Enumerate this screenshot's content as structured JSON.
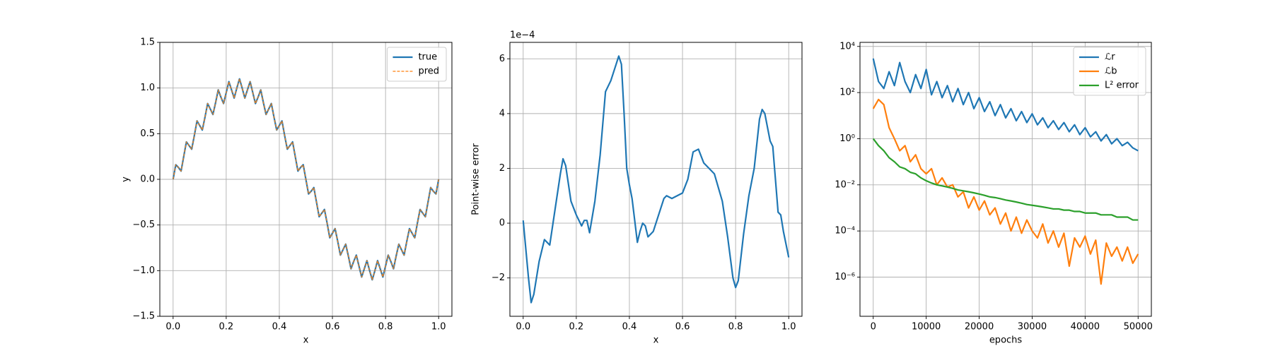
{
  "chart_data": [
    {
      "type": "line",
      "xlabel": "x",
      "ylabel": "y",
      "grid": true,
      "legend": "upper right",
      "xlim": [
        -0.05,
        1.05
      ],
      "ylim": [
        -1.5,
        1.5
      ],
      "xticks": [
        {
          "value": 0,
          "label": "0.0"
        },
        0.2,
        0.4,
        0.6,
        0.8,
        {
          "value": 1,
          "label": "1.0"
        }
      ],
      "yticks": [
        {
          "value": -1.5,
          "label": "−1.5"
        },
        {
          "value": -1,
          "label": "−1.0"
        },
        {
          "value": -0.5,
          "label": "−0.5"
        },
        {
          "value": 0,
          "label": "0.0"
        },
        0.5,
        {
          "value": 1,
          "label": "1.0"
        },
        1.5
      ],
      "x": [
        0,
        0.01,
        0.02,
        0.03,
        0.04,
        0.05,
        0.06,
        0.07,
        0.08,
        0.09,
        0.1,
        0.11,
        0.12,
        0.13,
        0.14,
        0.15,
        0.16,
        0.17,
        0.18,
        0.19,
        0.2,
        0.21,
        0.22,
        0.23,
        0.24,
        0.25,
        0.26,
        0.27,
        0.28,
        0.29,
        0.3,
        0.31,
        0.32,
        0.33,
        0.34,
        0.35,
        0.36,
        0.37,
        0.38,
        0.39,
        0.4,
        0.41,
        0.42,
        0.43,
        0.44,
        0.45,
        0.46,
        0.47,
        0.48,
        0.49,
        0.5,
        0.51,
        0.52,
        0.53,
        0.54,
        0.55,
        0.56,
        0.57,
        0.58,
        0.59,
        0.6,
        0.61,
        0.62,
        0.63,
        0.64,
        0.65,
        0.66,
        0.67,
        0.68,
        0.69,
        0.7,
        0.71,
        0.72,
        0.73,
        0.74,
        0.75,
        0.76,
        0.77,
        0.78,
        0.79,
        0.8,
        0.81,
        0.82,
        0.83,
        0.84,
        0.85,
        0.86,
        0.87,
        0.88,
        0.89,
        0.9,
        0.91,
        0.92,
        0.93,
        0.94,
        0.95,
        0.96,
        0.97,
        0.98,
        0.99,
        1
      ],
      "series": [
        {
          "name": "true",
          "color": "#1f77b4",
          "linestyle": "solid",
          "values": [
            0,
            0.16,
            0.13,
            0.09,
            0.25,
            0.41,
            0.37,
            0.33,
            0.48,
            0.64,
            0.59,
            0.54,
            0.68,
            0.83,
            0.77,
            0.71,
            0.84,
            0.98,
            0.9,
            0.83,
            0.95,
            1.07,
            0.98,
            0.89,
            1,
            1.1,
            1,
            0.89,
            0.98,
            1.07,
            0.95,
            0.83,
            0.9,
            0.98,
            0.84,
            0.71,
            0.77,
            0.83,
            0.68,
            0.54,
            0.59,
            0.64,
            0.48,
            0.33,
            0.37,
            0.41,
            0.25,
            0.09,
            0.13,
            0.16,
            0,
            -0.16,
            -0.13,
            -0.09,
            -0.25,
            -0.41,
            -0.37,
            -0.33,
            -0.48,
            -0.64,
            -0.59,
            -0.54,
            -0.68,
            -0.83,
            -0.77,
            -0.71,
            -0.84,
            -0.98,
            -0.9,
            -0.83,
            -0.95,
            -1.07,
            -0.98,
            -0.89,
            -1,
            -1.1,
            -1,
            -0.89,
            -0.98,
            -1.07,
            -0.95,
            -0.83,
            -0.9,
            -0.98,
            -0.84,
            -0.71,
            -0.77,
            -0.83,
            -0.68,
            -0.54,
            -0.59,
            -0.64,
            -0.48,
            -0.33,
            -0.37,
            -0.41,
            -0.25,
            -0.09,
            -0.13,
            -0.16,
            0
          ]
        },
        {
          "name": "pred",
          "color": "#ff7f0e",
          "linestyle": "dashed",
          "values": [
            0,
            0.16,
            0.13,
            0.09,
            0.25,
            0.41,
            0.37,
            0.33,
            0.48,
            0.64,
            0.59,
            0.54,
            0.68,
            0.83,
            0.77,
            0.71,
            0.84,
            0.98,
            0.9,
            0.83,
            0.95,
            1.07,
            0.98,
            0.89,
            1,
            1.1,
            1,
            0.89,
            0.98,
            1.07,
            0.95,
            0.83,
            0.9,
            0.98,
            0.84,
            0.71,
            0.77,
            0.83,
            0.68,
            0.54,
            0.59,
            0.64,
            0.48,
            0.33,
            0.37,
            0.41,
            0.25,
            0.09,
            0.13,
            0.16,
            0,
            -0.16,
            -0.13,
            -0.09,
            -0.25,
            -0.41,
            -0.37,
            -0.33,
            -0.48,
            -0.64,
            -0.59,
            -0.54,
            -0.68,
            -0.83,
            -0.77,
            -0.71,
            -0.84,
            -0.98,
            -0.9,
            -0.83,
            -0.95,
            -1.07,
            -0.98,
            -0.89,
            -1,
            -1.1,
            -1,
            -0.89,
            -0.98,
            -1.07,
            -0.95,
            -0.83,
            -0.9,
            -0.98,
            -0.84,
            -0.71,
            -0.77,
            -0.83,
            -0.68,
            -0.54,
            -0.59,
            -0.64,
            -0.48,
            -0.33,
            -0.37,
            -0.41,
            -0.25,
            -0.09,
            -0.13,
            -0.16,
            0
          ]
        }
      ]
    },
    {
      "type": "line",
      "xlabel": "x",
      "ylabel": "Point-wise error",
      "offset_label": "1e−4",
      "grid": true,
      "xlim": [
        -0.05,
        1.05
      ],
      "ylim": [
        -3.4,
        6.6
      ],
      "xticks": [
        {
          "value": 0,
          "label": "0.0"
        },
        0.2,
        0.4,
        0.6,
        0.8,
        {
          "value": 1,
          "label": "1.0"
        }
      ],
      "yticks": [
        {
          "value": -2,
          "label": "−2"
        },
        0,
        2,
        4,
        6
      ],
      "x": [
        0,
        0.02,
        0.03,
        0.04,
        0.06,
        0.08,
        0.09,
        0.1,
        0.12,
        0.14,
        0.15,
        0.16,
        0.18,
        0.2,
        0.22,
        0.23,
        0.24,
        0.25,
        0.27,
        0.29,
        0.31,
        0.33,
        0.35,
        0.36,
        0.37,
        0.38,
        0.39,
        0.4,
        0.41,
        0.43,
        0.44,
        0.45,
        0.46,
        0.47,
        0.49,
        0.51,
        0.53,
        0.54,
        0.56,
        0.58,
        0.6,
        0.62,
        0.64,
        0.66,
        0.68,
        0.7,
        0.72,
        0.75,
        0.77,
        0.79,
        0.8,
        0.81,
        0.83,
        0.85,
        0.87,
        0.89,
        0.9,
        0.91,
        0.93,
        0.94,
        0.96,
        0.97,
        0.98,
        1
      ],
      "series": [
        {
          "color": "#1f77b4",
          "linestyle": "solid",
          "values": [
            0.1,
            -2,
            -2.9,
            -2.6,
            -1.4,
            -0.6,
            -0.7,
            -0.8,
            0.5,
            1.8,
            2.35,
            2.1,
            0.8,
            0.3,
            -0.1,
            0.1,
            0.1,
            -0.35,
            0.8,
            2.5,
            4.8,
            5.2,
            5.8,
            6.1,
            5.8,
            4,
            2,
            1.4,
            0.9,
            -0.7,
            -0.3,
            0,
            -0.1,
            -0.5,
            -0.3,
            0.3,
            0.9,
            1,
            0.9,
            1,
            1.1,
            1.6,
            2.6,
            2.7,
            2.2,
            2,
            1.8,
            0.8,
            -0.5,
            -2,
            -2.35,
            -2.1,
            -0.4,
            1,
            2,
            3.8,
            4.15,
            4,
            3,
            2.8,
            0.4,
            0.3,
            -0.3,
            -1.25
          ]
        }
      ]
    },
    {
      "type": "line",
      "xlabel": "epochs",
      "grid": true,
      "legend": "upper right",
      "log_y": true,
      "xlim": [
        -2500,
        52500
      ],
      "ylim": [
        2e-08,
        15000
      ],
      "xticks": [
        0,
        10000,
        20000,
        30000,
        40000,
        50000
      ],
      "yticks": [
        {
          "value": 1e-06,
          "label": "10⁻⁶"
        },
        {
          "value": 0.0001,
          "label": "10⁻⁴"
        },
        {
          "value": 0.01,
          "label": "10⁻²"
        },
        {
          "value": 1,
          "label": "10⁰"
        },
        {
          "value": 100,
          "label": "10²"
        },
        {
          "value": 10000,
          "label": "10⁴"
        }
      ],
      "x": [
        0,
        1000,
        2000,
        3000,
        4000,
        5000,
        6000,
        7000,
        8000,
        9000,
        10000,
        11000,
        12000,
        13000,
        14000,
        15000,
        16000,
        17000,
        18000,
        19000,
        20000,
        21000,
        22000,
        23000,
        24000,
        25000,
        26000,
        27000,
        28000,
        29000,
        30000,
        31000,
        32000,
        33000,
        34000,
        35000,
        36000,
        37000,
        38000,
        39000,
        40000,
        41000,
        42000,
        43000,
        44000,
        45000,
        46000,
        47000,
        48000,
        49000,
        50000
      ],
      "series": [
        {
          "name": "ℒr",
          "color": "#1f77b4",
          "linestyle": "solid",
          "values": [
            3000,
            300,
            150,
            800,
            200,
            2000,
            300,
            100,
            600,
            150,
            1000,
            80,
            300,
            60,
            200,
            40,
            150,
            30,
            100,
            20,
            60,
            15,
            40,
            10,
            30,
            8,
            20,
            6,
            15,
            5,
            12,
            4,
            8,
            3,
            6,
            2.5,
            5,
            2,
            4,
            1.5,
            3,
            1.2,
            2,
            0.8,
            1.5,
            0.6,
            1,
            0.5,
            0.7,
            0.4,
            0.3
          ]
        },
        {
          "name": "ℒb",
          "color": "#ff7f0e",
          "linestyle": "solid",
          "values": [
            20,
            50,
            30,
            3,
            1,
            0.3,
            0.5,
            0.1,
            0.2,
            0.05,
            0.03,
            0.05,
            0.01,
            0.02,
            0.008,
            0.01,
            0.003,
            0.005,
            0.001,
            0.003,
            0.0008,
            0.002,
            0.0005,
            0.001,
            0.0002,
            0.0006,
            0.0001,
            0.0004,
            8e-05,
            0.0003,
            0.0001,
            5e-05,
            0.0002,
            3e-05,
            0.0001,
            2e-05,
            8e-05,
            3e-06,
            5e-05,
            2e-05,
            6e-05,
            1e-05,
            4e-05,
            5e-07,
            3e-05,
            8e-06,
            2e-05,
            5e-06,
            2e-05,
            4e-06,
            1e-05
          ]
        },
        {
          "name": "L² error",
          "color": "#2ca02c",
          "linestyle": "solid",
          "values": [
            1,
            0.5,
            0.3,
            0.15,
            0.1,
            0.06,
            0.05,
            0.035,
            0.03,
            0.02,
            0.015,
            0.012,
            0.01,
            0.009,
            0.008,
            0.007,
            0.006,
            0.0055,
            0.005,
            0.0045,
            0.004,
            0.0035,
            0.003,
            0.0028,
            0.0025,
            0.0022,
            0.002,
            0.0018,
            0.0016,
            0.0014,
            0.0013,
            0.0012,
            0.0011,
            0.001,
            0.0009,
            0.0009,
            0.0008,
            0.0008,
            0.0007,
            0.0007,
            0.0006,
            0.0006,
            0.0006,
            0.0005,
            0.0005,
            0.0005,
            0.0004,
            0.0004,
            0.0004,
            0.0003,
            0.0003
          ]
        }
      ]
    }
  ]
}
